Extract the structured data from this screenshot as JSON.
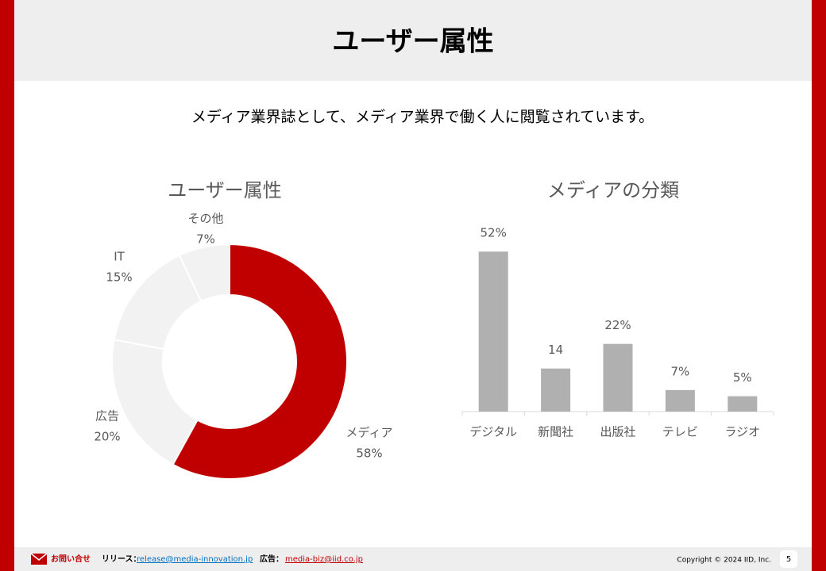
{
  "header": {
    "title": "ユーザー属性"
  },
  "lead": "メディア業界誌として、メディア業界で働く人に閲覧されています。",
  "chart_data": [
    {
      "type": "pie",
      "title": "ユーザー属性",
      "categories": [
        "メディア",
        "広告",
        "IT",
        "その他"
      ],
      "values": [
        58,
        20,
        15,
        7
      ],
      "value_labels": [
        "58%",
        "20%",
        "15%",
        "7%"
      ],
      "colors": [
        "#c00000",
        "#f2f2f2",
        "#f2f2f2",
        "#f2f2f2"
      ]
    },
    {
      "type": "bar",
      "title": "メディアの分類",
      "categories": [
        "デジタル",
        "新聞社",
        "出版社",
        "テレビ",
        "ラジオ"
      ],
      "values": [
        52,
        14,
        22,
        7,
        5
      ],
      "value_labels": [
        "52%",
        "14",
        "22%",
        "7%",
        "5%"
      ],
      "color": "#b0b0b0"
    }
  ],
  "footer": {
    "contact": "お問い合せ",
    "release_label": "リリース：",
    "release_email": "release@media-innovation.jp",
    "ad_label": "広告：",
    "ad_email": "media-biz@iid.co.jp",
    "copyright": "Copyright © 2024 IID, Inc.",
    "page": 5
  }
}
